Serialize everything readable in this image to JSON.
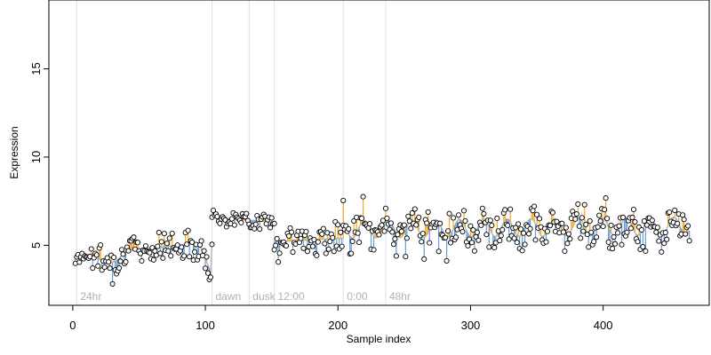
{
  "chart_data": {
    "type": "scatter",
    "xlabel": "Sample index",
    "ylabel": "Expression",
    "xlim": [
      -18,
      480
    ],
    "ylim": [
      1.6,
      18.9
    ],
    "x_ticks": [
      0,
      100,
      200,
      300,
      400
    ],
    "y_ticks": [
      5,
      10,
      15
    ],
    "grid": false,
    "colors": {
      "above_fit": "#f5a623",
      "below_fit": "#6a9bd8",
      "fit_line": "#bbbbbb",
      "points": "#000000",
      "vlines": "#e0e0e0"
    },
    "vertical_markers": [
      {
        "x": 3,
        "label": "24hr"
      },
      {
        "x": 105,
        "label": "dawn"
      },
      {
        "x": 133,
        "label": "dusk"
      },
      {
        "x": 152,
        "label": "12:00"
      },
      {
        "x": 204,
        "label": "0:00"
      },
      {
        "x": 236,
        "label": "48hr"
      }
    ],
    "segments": [
      {
        "x_start": 2,
        "x_end": 105,
        "start": 4.4,
        "end": 5.2,
        "noise": 0.6,
        "dip_start": 95,
        "dip_end": 104,
        "dip_value": 3.5,
        "early_dip_start": 15,
        "early_dip_end": 40,
        "early_dip_value": 4.0
      },
      {
        "x_start": 105,
        "x_end": 152,
        "start": 6.6,
        "end": 6.3,
        "noise": 0.35
      },
      {
        "x_start": 152,
        "x_end": 204,
        "start": 5.2,
        "end": 5.4,
        "noise": 0.75
      },
      {
        "x_start": 204,
        "x_end": 465,
        "start": 5.9,
        "end": 6.1,
        "noise": 0.8,
        "oscillation": 0.5
      }
    ]
  }
}
